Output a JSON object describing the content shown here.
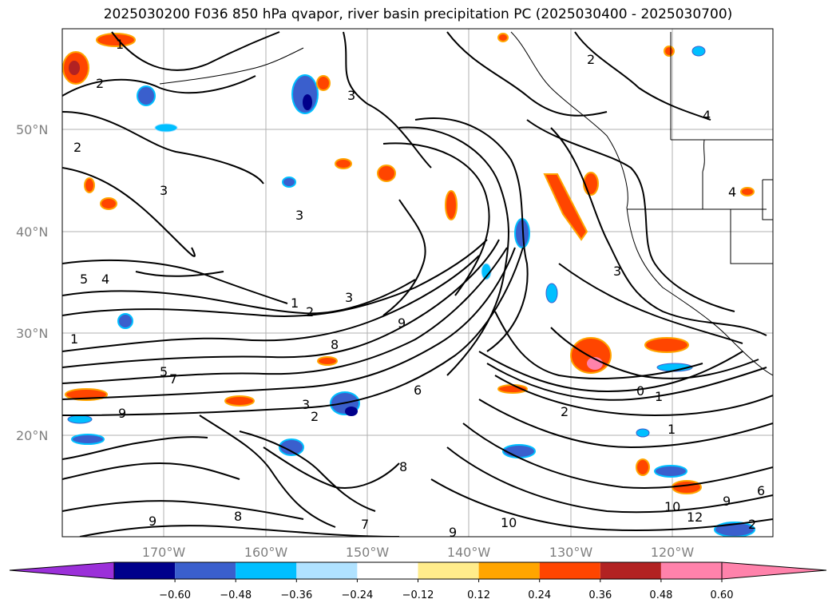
{
  "title": "2025030200 F036 850 hPa qvapor, river basin precipitation PC (2025030400 - 2025030700)",
  "latitude_labels": [
    "50°N",
    "40°N",
    "30°N",
    "20°N"
  ],
  "longitude_labels": [
    "170°W",
    "160°W",
    "150°W",
    "140°W",
    "130°W",
    "120°W"
  ],
  "contour_labels": [
    "1",
    "2",
    "2",
    "3",
    "3",
    "3",
    "1",
    "2",
    "3",
    "5",
    "4",
    "8",
    "9",
    "5",
    "7",
    "9",
    "0",
    "1",
    "2",
    "1",
    "4",
    "3",
    "2",
    "3",
    "8",
    "6",
    "2",
    "1",
    "4",
    "12",
    "10",
    "9",
    "2",
    "6",
    "9",
    "8",
    "7",
    "9",
    "10"
  ],
  "colorbar": {
    "ticks": [
      "−0.60",
      "−0.48",
      "−0.36",
      "−0.24",
      "−0.12",
      "0.12",
      "0.24",
      "0.36",
      "0.48",
      "0.60"
    ],
    "colors": {
      "under": "#9b30d9",
      "bins": [
        "#00008b",
        "#3a5fcd",
        "#00bfff",
        "#b0e2ff",
        "#ffffff",
        "#ffec8b",
        "#ffa500",
        "#ff4500",
        "#b22222",
        "#ff82ab"
      ],
      "over": "#ff82ab"
    }
  }
}
